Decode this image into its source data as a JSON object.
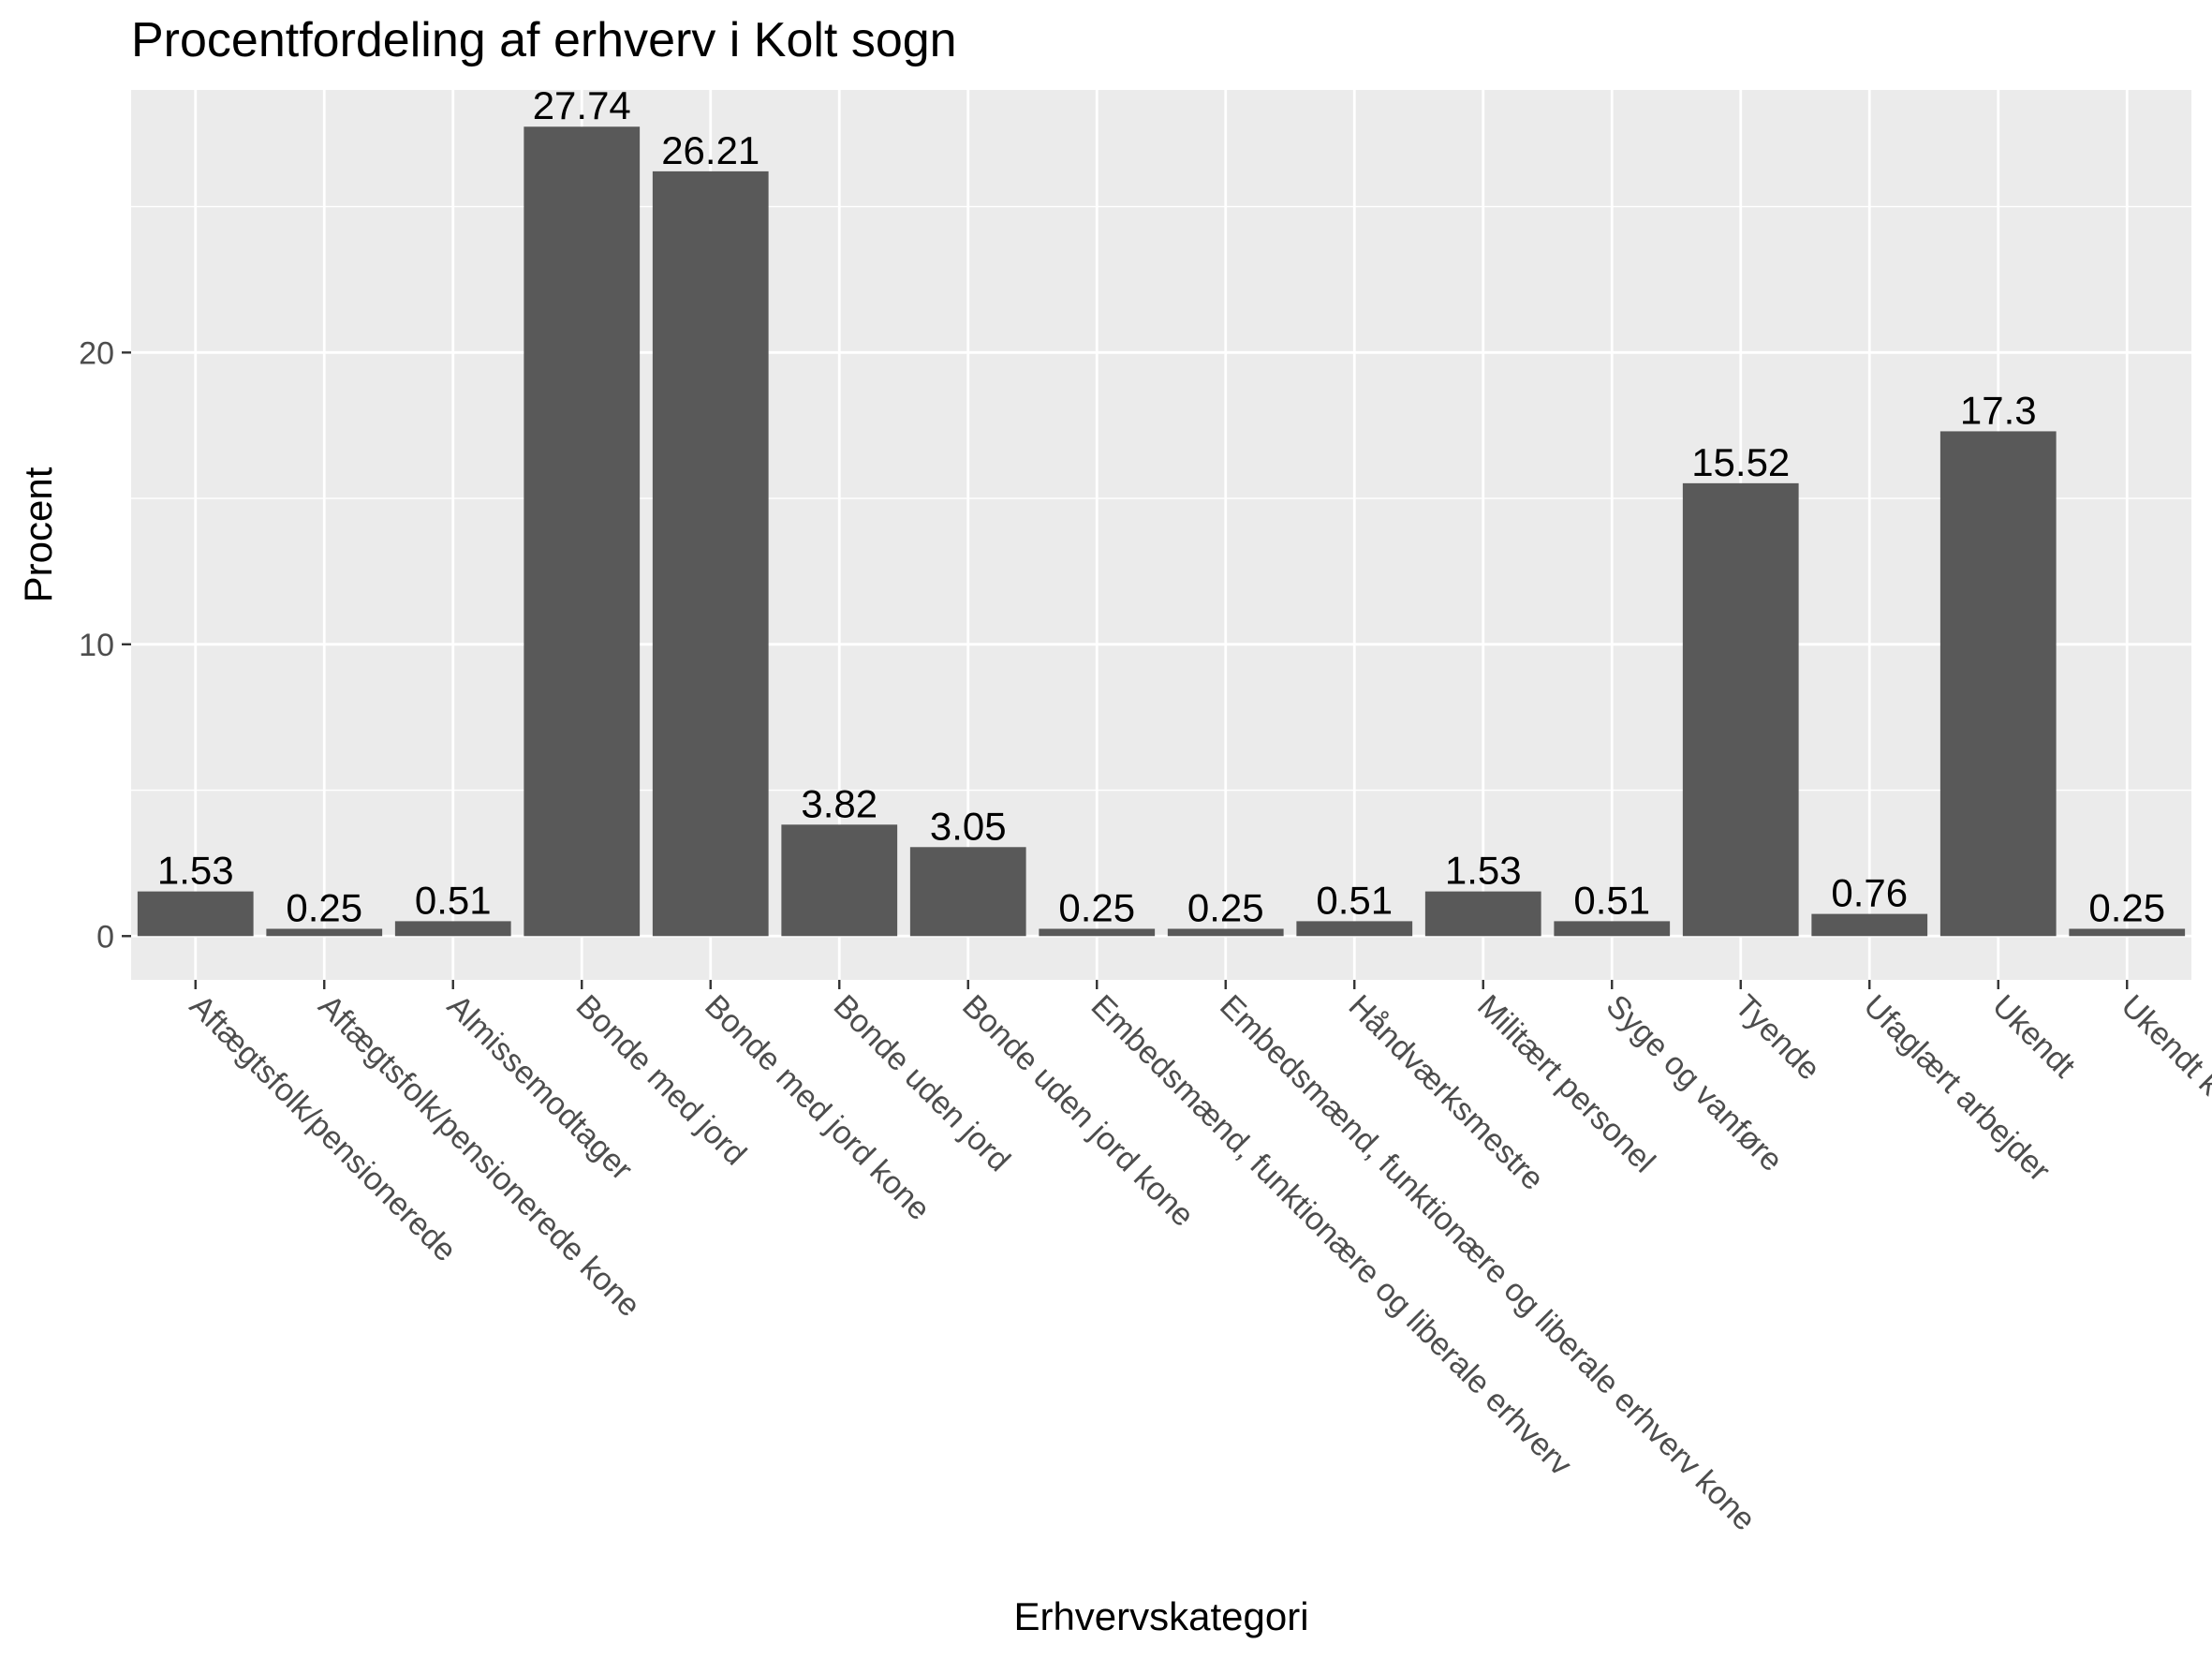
{
  "colors": {
    "panel": "#ebebeb",
    "grid": "#ffffff",
    "bar": "#595959",
    "tick": "#333333"
  },
  "chart_data": {
    "type": "bar",
    "title": "Procentfordeling af erhverv i Kolt sogn",
    "xlabel": "Erhvervskategori",
    "ylabel": "Procent",
    "ylim": [
      -1.5,
      29
    ],
    "yticks": [
      0,
      10,
      20
    ],
    "yticklabels": [
      "0",
      "10",
      "20"
    ],
    "grid": true,
    "categories": [
      "Aftægtsfolk/pensionerede",
      "Aftægtsfolk/pensionerede kone",
      "Almissemodtager",
      "Bonde med jord",
      "Bonde med jord kone",
      "Bonde uden jord",
      "Bonde uden jord kone",
      "Embedsmænd, funktionære og liberale erhverv",
      "Embedsmænd, funktionære og liberale erhverv kone",
      "Håndværksmestre",
      "Militært personel",
      "Syge og vanføre",
      "Tyende",
      "Ufaglært arbejder",
      "Ukendt",
      "Ukendt kone"
    ],
    "values": [
      1.53,
      0.25,
      0.51,
      27.74,
      26.21,
      3.82,
      3.05,
      0.25,
      0.25,
      0.51,
      1.53,
      0.51,
      15.52,
      0.76,
      17.3,
      0.25
    ],
    "value_labels": [
      "1.53",
      "0.25",
      "0.51",
      "27.74",
      "26.21",
      "3.82",
      "3.05",
      "0.25",
      "0.25",
      "0.51",
      "1.53",
      "0.51",
      "15.52",
      "0.76",
      "17.3",
      "0.25"
    ]
  }
}
